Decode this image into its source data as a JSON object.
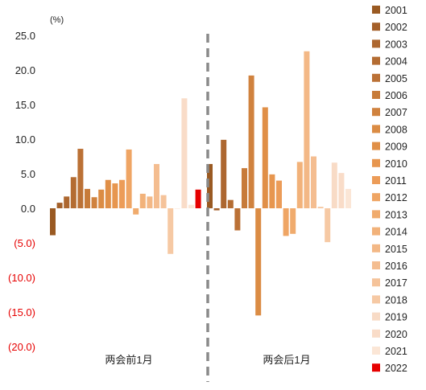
{
  "chart_data": {
    "type": "bar",
    "unit_label": "(%)",
    "ylim": [
      -20,
      25
    ],
    "y_ticks": [
      {
        "value": 25,
        "label": "25.0",
        "color": "#222222"
      },
      {
        "value": 20,
        "label": "20.0",
        "color": "#222222"
      },
      {
        "value": 15,
        "label": "15.0",
        "color": "#222222"
      },
      {
        "value": 10,
        "label": "10.0",
        "color": "#222222"
      },
      {
        "value": 5,
        "label": "5.0",
        "color": "#222222"
      },
      {
        "value": 0,
        "label": "0.0",
        "color": "#222222"
      },
      {
        "value": -5,
        "label": "(5.0)",
        "color": "#e60000"
      },
      {
        "value": -10,
        "label": "(10.0)",
        "color": "#e60000"
      },
      {
        "value": -15,
        "label": "(15.0)",
        "color": "#e60000"
      },
      {
        "value": -20,
        "label": "(20.0)",
        "color": "#e60000"
      }
    ],
    "grid": false,
    "legend_position": "right",
    "categories": [
      "两会前1月",
      "两会后1月"
    ],
    "divider": "dashed vertical line between groups",
    "series": [
      {
        "name": "2001",
        "color": "#9a5a22",
        "values": [
          -3.9,
          6.4
        ]
      },
      {
        "name": "2002",
        "color": "#a4602a",
        "values": [
          0.8,
          -0.3
        ]
      },
      {
        "name": "2003",
        "color": "#ad6730",
        "values": [
          1.7,
          9.9
        ]
      },
      {
        "name": "2004",
        "color": "#b46c32",
        "values": [
          4.5,
          1.2
        ]
      },
      {
        "name": "2005",
        "color": "#bb7136",
        "values": [
          8.6,
          -3.2
        ]
      },
      {
        "name": "2006",
        "color": "#c77b3a",
        "values": [
          2.8,
          5.8
        ]
      },
      {
        "name": "2007",
        "color": "#d0823e",
        "values": [
          1.6,
          19.2
        ]
      },
      {
        "name": "2008",
        "color": "#db8c44",
        "values": [
          2.7,
          -15.5
        ]
      },
      {
        "name": "2009",
        "color": "#e08f47",
        "values": [
          4.1,
          14.6
        ]
      },
      {
        "name": "2010",
        "color": "#e7964f",
        "values": [
          3.6,
          4.9
        ]
      },
      {
        "name": "2011",
        "color": "#ec9c58",
        "values": [
          4.1,
          4.0
        ]
      },
      {
        "name": "2012",
        "color": "#efa564",
        "values": [
          8.5,
          -4.0
        ]
      },
      {
        "name": "2013",
        "color": "#f0ab6d",
        "values": [
          -0.9,
          -3.7
        ]
      },
      {
        "name": "2014",
        "color": "#f2b27a",
        "values": [
          2.1,
          6.7
        ]
      },
      {
        "name": "2015",
        "color": "#f3b886",
        "values": [
          1.7,
          22.7
        ]
      },
      {
        "name": "2016",
        "color": "#f4bd90",
        "values": [
          6.4,
          7.5
        ]
      },
      {
        "name": "2017",
        "color": "#f5c39a",
        "values": [
          1.9,
          0.2
        ]
      },
      {
        "name": "2018",
        "color": "#f6c9a4",
        "values": [
          -6.6,
          -4.9
        ]
      },
      {
        "name": "2019",
        "color": "#f8dbc6",
        "values": [
          0.0,
          6.6
        ]
      },
      {
        "name": "2020",
        "color": "#f9dcc8",
        "values": [
          15.9,
          5.1
        ]
      },
      {
        "name": "2021",
        "color": "#fbe6d6",
        "values": [
          0.5,
          2.8
        ]
      },
      {
        "name": "2022",
        "color": "#e60000",
        "values": [
          2.7,
          null
        ]
      }
    ]
  }
}
